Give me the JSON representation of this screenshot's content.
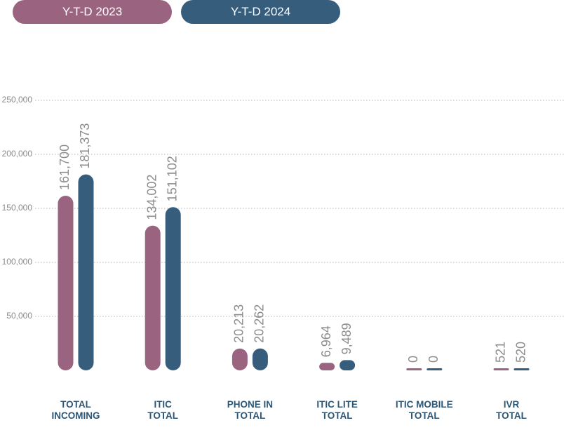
{
  "chart_data": {
    "type": "bar",
    "categories": [
      "TOTAL\nINCOMING",
      "ITIC\nTOTAL",
      "PHONE IN\nTOTAL",
      "ITIC LITE\nTOTAL",
      "ITIC MOBILE\nTOTAL",
      "IVR\nTOTAL"
    ],
    "series": [
      {
        "name": "Y-T-D 2023",
        "color": "#9a6481",
        "values": [
          161700,
          134002,
          20213,
          6964,
          0,
          521
        ],
        "value_labels": [
          "161,700",
          "134,002",
          "20,213",
          "6,964",
          "0",
          "521"
        ]
      },
      {
        "name": "Y-T-D 2024",
        "color": "#375d7d",
        "values": [
          181373,
          151102,
          20262,
          9489,
          0,
          520
        ],
        "value_labels": [
          "181,373",
          "151,102",
          "20,262",
          "9,489",
          "0",
          "520"
        ]
      }
    ],
    "ylim": [
      0,
      250000
    ],
    "yticks": [
      {
        "value": 50000,
        "label": "50,000"
      },
      {
        "value": 100000,
        "label": "100,000"
      },
      {
        "value": 150000,
        "label": "150,000"
      },
      {
        "value": 200000,
        "label": "200,000"
      },
      {
        "value": 250000,
        "label": "250,000"
      }
    ],
    "grid": true,
    "legend": "top"
  }
}
